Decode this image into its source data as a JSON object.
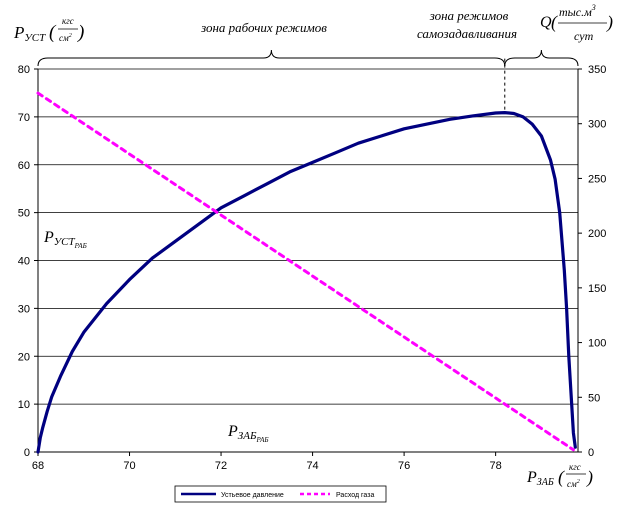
{
  "chart_data": {
    "type": "line",
    "x_axis": {
      "range": [
        68,
        79.8
      ],
      "ticks": [
        68,
        70,
        72,
        74,
        76,
        78
      ],
      "label": {
        "main": "P",
        "sub": "ЗАБ",
        "unit_num": "кгс",
        "unit_den": "см",
        "unit_den_exp": "2"
      }
    },
    "y_left": {
      "range": [
        0,
        80
      ],
      "ticks": [
        0,
        10,
        20,
        30,
        40,
        50,
        60,
        70,
        80
      ],
      "label": {
        "main": "P",
        "sub": "УСТ",
        "unit_num": "кгс",
        "unit_den": "см",
        "unit_den_exp": "2"
      }
    },
    "y_right": {
      "range": [
        0,
        350
      ],
      "ticks": [
        0,
        50,
        100,
        150,
        200,
        250,
        300,
        350
      ],
      "label": {
        "main": "Q",
        "unit_num": "тыс.м",
        "unit_num_exp": "3",
        "unit_den": "сут"
      }
    },
    "grid": "horizontal",
    "legend_position": "bottom",
    "series": [
      {
        "name": "Устьевое давление",
        "axis": "left",
        "color": "#000080",
        "style": "solid",
        "x": [
          68.0,
          68.05,
          68.1,
          68.2,
          68.3,
          68.5,
          68.75,
          69.0,
          69.5,
          70.0,
          70.5,
          71.0,
          71.5,
          72.0,
          72.5,
          73.0,
          73.5,
          74.0,
          74.5,
          75.0,
          75.5,
          76.0,
          76.5,
          77.0,
          77.5,
          78.0,
          78.2,
          78.4,
          78.6,
          78.8,
          79.0,
          79.2,
          79.3,
          79.4,
          79.5,
          79.55,
          79.6,
          79.65,
          79.7,
          79.74
        ],
        "y": [
          0,
          3,
          5,
          8.5,
          11.5,
          16,
          21,
          25,
          31,
          36,
          40.5,
          44,
          47.5,
          51,
          53.5,
          56,
          58.5,
          60.5,
          62.5,
          64.5,
          66,
          67.5,
          68.5,
          69.5,
          70.2,
          70.8,
          70.9,
          70.7,
          70.0,
          68.5,
          66,
          61,
          57,
          50,
          38,
          30,
          20,
          12,
          4,
          1
        ]
      },
      {
        "name": "Расход газа",
        "axis": "right",
        "color": "#ff00ff",
        "style": "dashed",
        "x": [
          68.0,
          79.7
        ],
        "y": [
          328,
          2
        ]
      }
    ],
    "annotations": {
      "zone_work": "зона рабочих режимов",
      "zone_self_line1": "зона режимов",
      "zone_self_line2": "самозадавливания",
      "p_ust_rab": {
        "main": "P",
        "sub": "УСТ",
        "subsub": "РАБ"
      },
      "p_zab_rab": {
        "main": "P",
        "sub": "ЗАБ",
        "subsub": "РАБ"
      }
    }
  }
}
